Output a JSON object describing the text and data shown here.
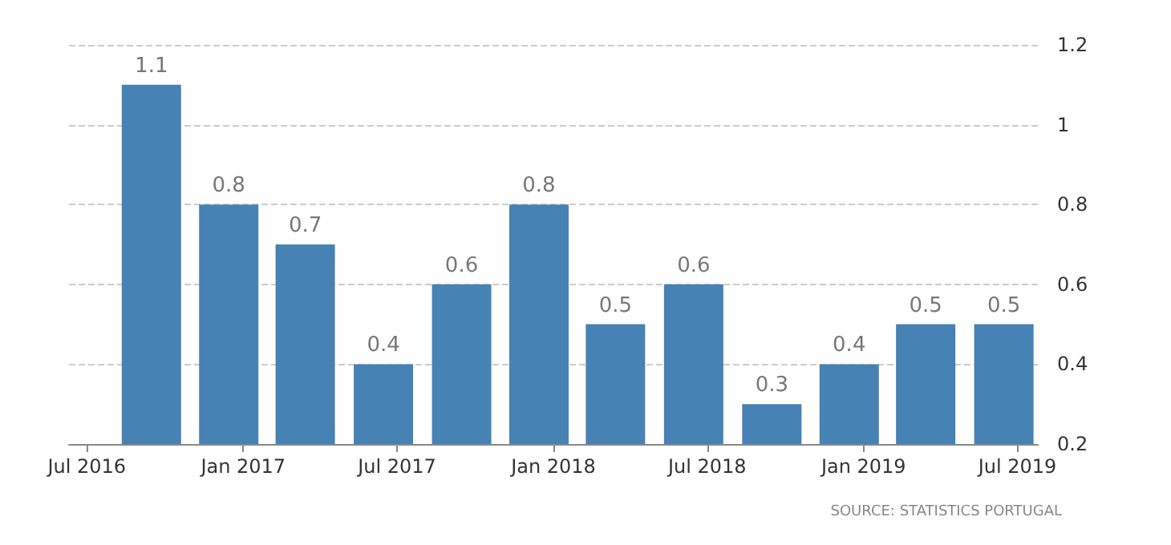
{
  "chart_data": {
    "type": "bar",
    "x": [
      "2016-09-15",
      "2016-12-15",
      "2017-03-15",
      "2017-06-15",
      "2017-09-15",
      "2017-12-15",
      "2018-03-15",
      "2018-06-15",
      "2018-09-15",
      "2018-12-15",
      "2019-03-15",
      "2019-06-15"
    ],
    "values": [
      1.1,
      0.8,
      0.7,
      0.4,
      0.6,
      0.8,
      0.5,
      0.6,
      0.3,
      0.4,
      0.5,
      0.5
    ],
    "color": "#4682b4",
    "data_labels": true,
    "xlim": [
      "2016-06-10",
      "2019-07-25"
    ],
    "xticks": [
      {
        "value": "2016-07-01",
        "label": "Jul 2016"
      },
      {
        "value": "2017-01-01",
        "label": "Jan 2017"
      },
      {
        "value": "2017-07-01",
        "label": "Jul 2017"
      },
      {
        "value": "2018-01-01",
        "label": "Jan 2018"
      },
      {
        "value": "2018-07-01",
        "label": "Jul 2018"
      },
      {
        "value": "2019-01-01",
        "label": "Jan 2019"
      },
      {
        "value": "2019-07-01",
        "label": "Jul 2019"
      }
    ],
    "ylim": [
      0.2,
      1.2
    ],
    "yticks": [
      0.2,
      0.4,
      0.6,
      0.8,
      {
        "value": 1,
        "label": "1"
      },
      1.2
    ],
    "grid": "y",
    "annotations": [
      "SOURCE: STATISTICS PORTUGAL"
    ]
  }
}
